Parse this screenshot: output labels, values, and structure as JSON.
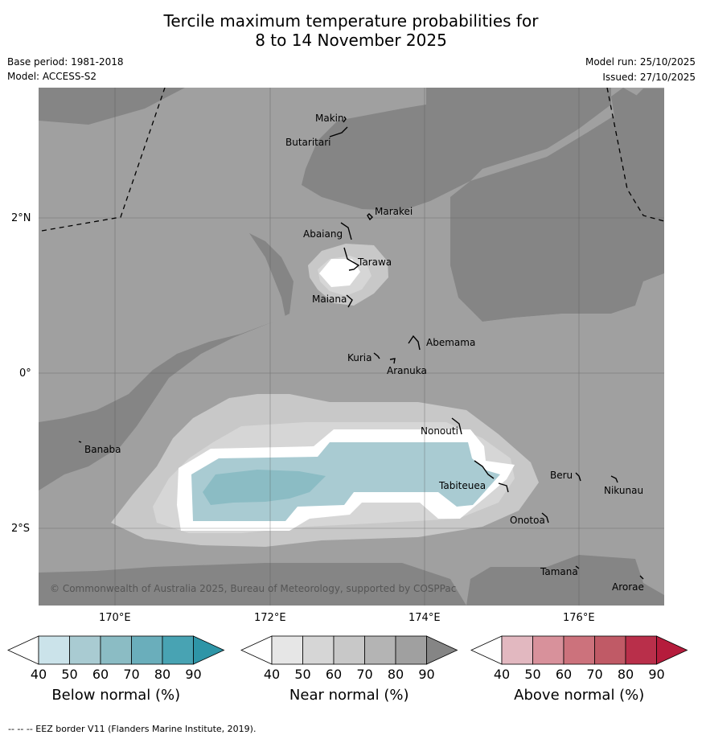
{
  "title_line1": "Tercile maximum temperature probabilities for",
  "title_line2": "8 to 14 November 2025",
  "base_period": "Base period: 1981-2018",
  "model": "Model: ACCESS-S2",
  "model_run": "Model run: 25/10/2025",
  "issued": "Issued: 27/10/2025",
  "lat_labels": [
    "2°N",
    "0°",
    "2°S"
  ],
  "lon_labels": [
    "170°E",
    "172°E",
    "174°E",
    "176°E"
  ],
  "islands": [
    "Makin",
    "Butaritari",
    "Marakei",
    "Abaiang",
    "Tarawa",
    "Maiana",
    "Abemama",
    "Kuria",
    "Aranuka",
    "Banaba",
    "Nonouti",
    "Tabiteuea",
    "Beru",
    "Nikunau",
    "Onotoa",
    "Tamana",
    "Arorae"
  ],
  "copyright": "© Commonwealth of Australia 2025, Bureau of Meteorology, supported by COSPPac",
  "colorbar_ticks": [
    "40",
    "50",
    "60",
    "70",
    "80",
    "90"
  ],
  "colorbars": [
    {
      "title": "Below normal (%)",
      "colors": [
        "#ffffff",
        "#cbe3ea",
        "#a9cbd2",
        "#8bbcc4",
        "#6aaebb",
        "#48a3b3",
        "#2e95a7"
      ]
    },
    {
      "title": "Near normal (%)",
      "colors": [
        "#ffffff",
        "#e6e6e6",
        "#d6d6d6",
        "#c8c8c8",
        "#b4b4b4",
        "#a0a0a0",
        "#858585"
      ]
    },
    {
      "title": "Above normal (%)",
      "colors": [
        "#ffffff",
        "#e2b8c0",
        "#d8919b",
        "#cc727c",
        "#c05a66",
        "#b92f4a",
        "#b51c3c"
      ]
    }
  ],
  "footer": "--  --  -- EEZ border V11 (Flanders Marine Institute, 2019)."
}
